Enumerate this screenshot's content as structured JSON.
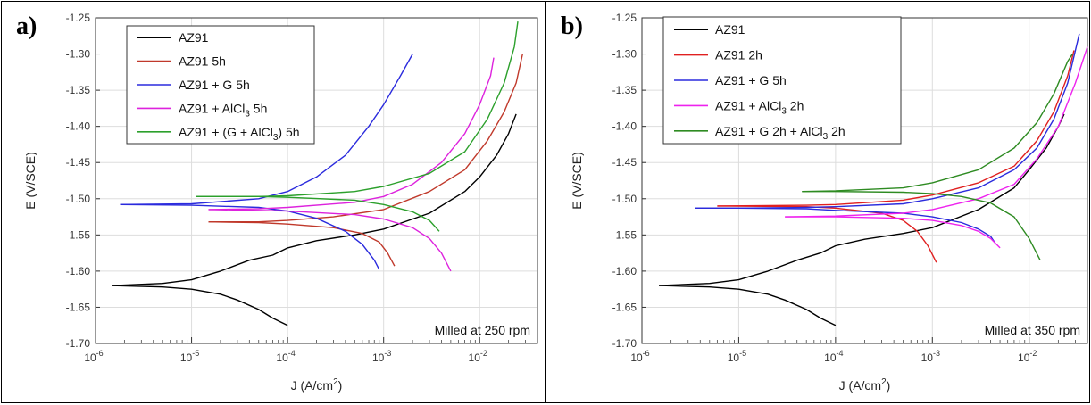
{
  "chart_data": [
    {
      "type": "line",
      "panel_label": "a)",
      "xlabel": "J (A/cm²)",
      "ylabel": "E (V/SCE)",
      "x_scale": "log",
      "xlim": [
        1e-06,
        0.04
      ],
      "ylim": [
        -1.7,
        -1.25
      ],
      "x_tick_labels": [
        {
          "value": 1e-06,
          "base": "10",
          "exp": "-6"
        },
        {
          "value": 1e-05,
          "base": "10",
          "exp": "-5"
        },
        {
          "value": 0.0001,
          "base": "10",
          "exp": "-4"
        },
        {
          "value": 0.001,
          "base": "10",
          "exp": "-3"
        },
        {
          "value": 0.01,
          "base": "10",
          "exp": "-2"
        }
      ],
      "y_ticks": [
        "-1.25",
        "-1.30",
        "-1.35",
        "-1.40",
        "-1.45",
        "-1.50",
        "-1.55",
        "-1.60",
        "-1.65",
        "-1.70"
      ],
      "annotation": "Milled at 250 rpm",
      "legend_position": "top-left",
      "series": [
        {
          "name": "AZ91",
          "name_sub": "",
          "name_after": "",
          "color": "#000000",
          "cathodic": {
            "x": [
              1.5e-06,
              5e-06,
              1e-05,
              2e-05,
              3e-05,
              5e-05,
              7e-05,
              0.0001
            ],
            "y": [
              -1.62,
              -1.622,
              -1.625,
              -1.632,
              -1.64,
              -1.653,
              -1.665,
              -1.675
            ]
          },
          "anodic": {
            "x": [
              1.5e-06,
              5e-06,
              1e-05,
              2e-05,
              4e-05,
              7e-05,
              0.0001,
              0.0002,
              0.0005,
              0.001,
              0.003,
              0.007,
              0.01,
              0.015,
              0.02,
              0.024
            ],
            "y": [
              -1.62,
              -1.617,
              -1.612,
              -1.6,
              -1.585,
              -1.578,
              -1.568,
              -1.558,
              -1.55,
              -1.542,
              -1.52,
              -1.49,
              -1.47,
              -1.44,
              -1.41,
              -1.383
            ]
          }
        },
        {
          "name": "AZ91 5h",
          "name_sub": "",
          "name_after": "",
          "color": "#c0392b",
          "cathodic": {
            "x": [
              1.5e-05,
              5e-05,
              0.0001,
              0.0003,
              0.0006,
              0.0009,
              0.0011,
              0.0013
            ],
            "y": [
              -1.532,
              -1.533,
              -1.535,
              -1.54,
              -1.548,
              -1.56,
              -1.575,
              -1.593
            ]
          },
          "anodic": {
            "x": [
              1.5e-05,
              5e-05,
              0.0001,
              0.0003,
              0.001,
              0.003,
              0.007,
              0.012,
              0.018,
              0.024,
              0.028
            ],
            "y": [
              -1.532,
              -1.532,
              -1.53,
              -1.525,
              -1.515,
              -1.49,
              -1.46,
              -1.42,
              -1.38,
              -1.34,
              -1.3
            ]
          }
        },
        {
          "name": "AZ91 + G 5h",
          "name_sub": "",
          "name_after": "",
          "color": "#2b2bdd",
          "cathodic": {
            "x": [
              1.8e-06,
              1e-05,
              5e-05,
              0.0001,
              0.0002,
              0.0004,
              0.0006,
              0.0008,
              0.0009
            ],
            "y": [
              -1.508,
              -1.509,
              -1.512,
              -1.517,
              -1.527,
              -1.545,
              -1.563,
              -1.585,
              -1.598
            ]
          },
          "anodic": {
            "x": [
              1.8e-06,
              1e-05,
              5e-05,
              0.0001,
              0.0002,
              0.0004,
              0.0007,
              0.001,
              0.0015,
              0.002
            ],
            "y": [
              -1.508,
              -1.507,
              -1.5,
              -1.49,
              -1.47,
              -1.44,
              -1.4,
              -1.37,
              -1.33,
              -1.3
            ]
          }
        },
        {
          "name": "AZ91 + AlCl",
          "name_sub": "3",
          "name_after": " 5h",
          "color": "#dd22dd",
          "cathodic": {
            "x": [
              1.5e-05,
              5e-05,
              0.0001,
              0.0005,
              0.001,
              0.002,
              0.003,
              0.004,
              0.005
            ],
            "y": [
              -1.515,
              -1.516,
              -1.517,
              -1.522,
              -1.528,
              -1.54,
              -1.555,
              -1.575,
              -1.6
            ]
          },
          "anodic": {
            "x": [
              1.5e-05,
              5e-05,
              0.0001,
              0.0005,
              0.001,
              0.002,
              0.004,
              0.007,
              0.01,
              0.013,
              0.014
            ],
            "y": [
              -1.515,
              -1.514,
              -1.512,
              -1.505,
              -1.497,
              -1.48,
              -1.45,
              -1.41,
              -1.37,
              -1.33,
              -1.305
            ]
          }
        },
        {
          "name": "AZ91 + (G + AlCl",
          "name_sub": "3",
          "name_after": ") 5h",
          "color": "#2ca02c",
          "cathodic": {
            "x": [
              1.1e-05,
              5e-05,
              0.0001,
              0.0005,
              0.001,
              0.002,
              0.003,
              0.0038
            ],
            "y": [
              -1.497,
              -1.497,
              -1.498,
              -1.502,
              -1.508,
              -1.518,
              -1.53,
              -1.545
            ]
          },
          "anodic": {
            "x": [
              1.1e-05,
              5e-05,
              0.0001,
              0.0005,
              0.001,
              0.003,
              0.007,
              0.012,
              0.018,
              0.023,
              0.025
            ],
            "y": [
              -1.497,
              -1.497,
              -1.496,
              -1.49,
              -1.483,
              -1.465,
              -1.435,
              -1.39,
              -1.34,
              -1.29,
              -1.255
            ]
          }
        }
      ]
    },
    {
      "type": "line",
      "panel_label": "b)",
      "xlabel": "J (A/cm²)",
      "ylabel": "E (V/SCE)",
      "x_scale": "log",
      "xlim": [
        1e-06,
        0.04
      ],
      "ylim": [
        -1.7,
        -1.25
      ],
      "x_tick_labels": [
        {
          "value": 1e-06,
          "base": "10",
          "exp": "-6"
        },
        {
          "value": 1e-05,
          "base": "10",
          "exp": "-5"
        },
        {
          "value": 0.0001,
          "base": "10",
          "exp": "-4"
        },
        {
          "value": 0.001,
          "base": "10",
          "exp": "-3"
        },
        {
          "value": 0.01,
          "base": "10",
          "exp": "-2"
        }
      ],
      "y_ticks": [
        "-1.25",
        "-1.30",
        "-1.35",
        "-1.40",
        "-1.45",
        "-1.50",
        "-1.55",
        "-1.60",
        "-1.65",
        "-1.70"
      ],
      "annotation": "Milled at 350 rpm",
      "legend_position": "top-left",
      "series": [
        {
          "name": "AZ91",
          "name_sub": "",
          "name_after": "",
          "color": "#000000",
          "cathodic": {
            "x": [
              1.5e-06,
              5e-06,
              1e-05,
              2e-05,
              3e-05,
              5e-05,
              7e-05,
              0.0001
            ],
            "y": [
              -1.62,
              -1.622,
              -1.625,
              -1.632,
              -1.64,
              -1.653,
              -1.665,
              -1.675
            ]
          },
          "anodic": {
            "x": [
              1.5e-06,
              5e-06,
              1e-05,
              2e-05,
              4e-05,
              7e-05,
              0.0001,
              0.0002,
              0.0005,
              0.001,
              0.003,
              0.007,
              0.01,
              0.015,
              0.02,
              0.023
            ],
            "y": [
              -1.62,
              -1.617,
              -1.612,
              -1.6,
              -1.585,
              -1.575,
              -1.565,
              -1.556,
              -1.548,
              -1.54,
              -1.515,
              -1.485,
              -1.46,
              -1.43,
              -1.4,
              -1.383
            ]
          }
        },
        {
          "name": "AZ91 2h",
          "name_sub": "",
          "name_after": "",
          "color": "#e02020",
          "cathodic": {
            "x": [
              6e-06,
              5e-05,
              0.0001,
              0.0003,
              0.0005,
              0.0007,
              0.0009,
              0.0011
            ],
            "y": [
              -1.51,
              -1.511,
              -1.513,
              -1.52,
              -1.53,
              -1.545,
              -1.565,
              -1.588
            ]
          },
          "anodic": {
            "x": [
              6e-06,
              5e-05,
              0.0001,
              0.0005,
              0.001,
              0.003,
              0.007,
              0.012,
              0.018,
              0.025,
              0.029
            ],
            "y": [
              -1.51,
              -1.509,
              -1.508,
              -1.502,
              -1.495,
              -1.478,
              -1.455,
              -1.42,
              -1.38,
              -1.33,
              -1.295
            ]
          }
        },
        {
          "name": "AZ91 + G 5h",
          "name_sub": "",
          "name_after": "",
          "color": "#2b2bdd",
          "cathodic": {
            "x": [
              3.5e-06,
              1e-05,
              5e-05,
              0.0001,
              0.0005,
              0.001,
              0.002,
              0.003,
              0.004,
              0.0045
            ],
            "y": [
              -1.513,
              -1.513,
              -1.514,
              -1.516,
              -1.52,
              -1.525,
              -1.533,
              -1.542,
              -1.552,
              -1.562
            ]
          },
          "anodic": {
            "x": [
              3.5e-06,
              1e-05,
              5e-05,
              0.0001,
              0.0005,
              0.001,
              0.003,
              0.007,
              0.012,
              0.018,
              0.025,
              0.033
            ],
            "y": [
              -1.513,
              -1.513,
              -1.512,
              -1.511,
              -1.507,
              -1.5,
              -1.485,
              -1.46,
              -1.43,
              -1.39,
              -1.34,
              -1.272
            ]
          }
        },
        {
          "name": "AZ91 + AlCl",
          "name_sub": "3",
          "name_after": " 2h",
          "color": "#ee22ee",
          "cathodic": {
            "x": [
              3e-05,
              0.0001,
              0.0005,
              0.001,
              0.002,
              0.003,
              0.004,
              0.005
            ],
            "y": [
              -1.525,
              -1.525,
              -1.527,
              -1.53,
              -1.537,
              -1.545,
              -1.555,
              -1.568
            ]
          },
          "anodic": {
            "x": [
              3e-05,
              0.0001,
              0.0005,
              0.001,
              0.003,
              0.007,
              0.012,
              0.02,
              0.03,
              0.04
            ],
            "y": [
              -1.525,
              -1.524,
              -1.52,
              -1.515,
              -1.5,
              -1.48,
              -1.445,
              -1.4,
              -1.34,
              -1.29
            ]
          }
        },
        {
          "name": "AZ91 + G 2h + AlCl",
          "name_sub": "3",
          "name_after": " 2h",
          "color": "#2e8b22",
          "cathodic": {
            "x": [
              4.5e-05,
              0.0001,
              0.0005,
              0.001,
              0.002,
              0.004,
              0.007,
              0.01,
              0.013
            ],
            "y": [
              -1.49,
              -1.49,
              -1.491,
              -1.493,
              -1.497,
              -1.506,
              -1.525,
              -1.555,
              -1.585
            ]
          },
          "anodic": {
            "x": [
              4.5e-05,
              0.0001,
              0.0005,
              0.001,
              0.003,
              0.007,
              0.012,
              0.018,
              0.025,
              0.028
            ],
            "y": [
              -1.49,
              -1.489,
              -1.485,
              -1.478,
              -1.46,
              -1.43,
              -1.395,
              -1.355,
              -1.31,
              -1.3
            ]
          }
        }
      ]
    }
  ]
}
